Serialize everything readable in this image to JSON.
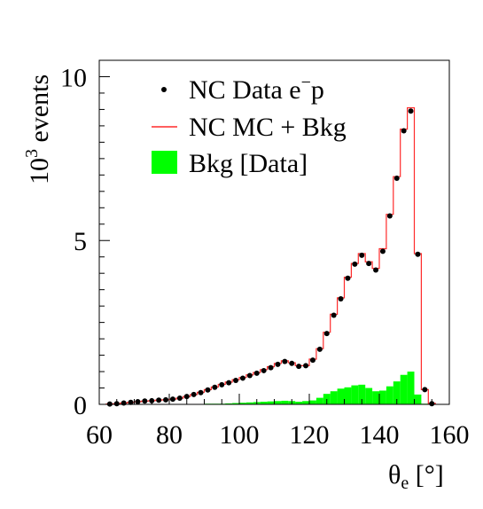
{
  "chart_data": {
    "type": "histogram",
    "xlabel": "θ",
    "xlabel_sub": "e",
    "xlabel_unit": " [°]",
    "ylabel_pre": "10",
    "ylabel_sup": "3",
    "ylabel_post": " events",
    "xlim": [
      60,
      160
    ],
    "ylim": [
      0,
      10.5
    ],
    "x_ticks": [
      60,
      80,
      100,
      120,
      140,
      160
    ],
    "y_ticks": [
      0,
      5,
      10
    ],
    "bin_edges": [
      62,
      64,
      66,
      68,
      70,
      72,
      74,
      76,
      78,
      80,
      82,
      84,
      86,
      88,
      90,
      92,
      94,
      96,
      98,
      100,
      102,
      104,
      106,
      108,
      110,
      112,
      114,
      116,
      118,
      120,
      122,
      124,
      126,
      128,
      130,
      132,
      134,
      136,
      138,
      140,
      142,
      144,
      146,
      148,
      150,
      152,
      154,
      156
    ],
    "legend": {
      "placement": "top-center",
      "entries": [
        {
          "key": "data",
          "label_main": "NC Data  e",
          "label_sup": "−",
          "label_tail": "p"
        },
        {
          "key": "mc",
          "label": "NC MC + Bkg"
        },
        {
          "key": "bkg",
          "label": "Bkg [Data]"
        }
      ]
    },
    "series": [
      {
        "key": "data",
        "style": "points",
        "color": "#000000",
        "x": [
          63,
          65,
          67,
          69,
          71,
          73,
          75,
          77,
          79,
          81,
          83,
          85,
          87,
          89,
          91,
          93,
          95,
          97,
          99,
          101,
          103,
          105,
          107,
          109,
          111,
          113,
          115,
          117,
          119,
          121,
          123,
          125,
          127,
          129,
          131,
          133,
          135,
          137,
          139,
          141,
          143,
          145,
          147,
          149,
          151,
          153,
          155
        ],
        "y": [
          0.01,
          0.02,
          0.04,
          0.06,
          0.08,
          0.1,
          0.11,
          0.13,
          0.14,
          0.16,
          0.19,
          0.24,
          0.3,
          0.36,
          0.44,
          0.52,
          0.6,
          0.66,
          0.73,
          0.8,
          0.88,
          0.95,
          1.03,
          1.12,
          1.22,
          1.31,
          1.25,
          1.16,
          1.18,
          1.35,
          1.68,
          2.16,
          2.72,
          3.22,
          3.85,
          4.28,
          4.55,
          4.3,
          4.1,
          4.67,
          5.75,
          6.9,
          8.35,
          8.95,
          4.58,
          0.45,
          0.02
        ]
      },
      {
        "key": "mc",
        "style": "step",
        "color": "#ff2a2a",
        "y": [
          0.01,
          0.02,
          0.04,
          0.06,
          0.08,
          0.1,
          0.11,
          0.13,
          0.14,
          0.16,
          0.19,
          0.24,
          0.3,
          0.37,
          0.45,
          0.53,
          0.61,
          0.68,
          0.75,
          0.82,
          0.9,
          0.97,
          1.06,
          1.15,
          1.25,
          1.33,
          1.27,
          1.18,
          1.18,
          1.38,
          1.7,
          2.2,
          2.75,
          3.25,
          3.88,
          4.3,
          4.6,
          4.35,
          4.15,
          4.75,
          5.8,
          6.95,
          8.4,
          9.05,
          4.6,
          0.45,
          0.03
        ]
      },
      {
        "key": "bkg",
        "style": "filled-step",
        "color": "#00ff00",
        "y": [
          0,
          0,
          0,
          0,
          0,
          0,
          0,
          0,
          0,
          0,
          0,
          0,
          0.01,
          0.01,
          0.02,
          0.02,
          0.02,
          0.03,
          0.04,
          0.05,
          0.06,
          0.07,
          0.08,
          0.09,
          0.1,
          0.11,
          0.1,
          0.08,
          0.1,
          0.12,
          0.2,
          0.32,
          0.4,
          0.48,
          0.52,
          0.58,
          0.6,
          0.5,
          0.4,
          0.42,
          0.55,
          0.7,
          0.9,
          1.0,
          0.3,
          0.02,
          0
        ]
      }
    ]
  }
}
